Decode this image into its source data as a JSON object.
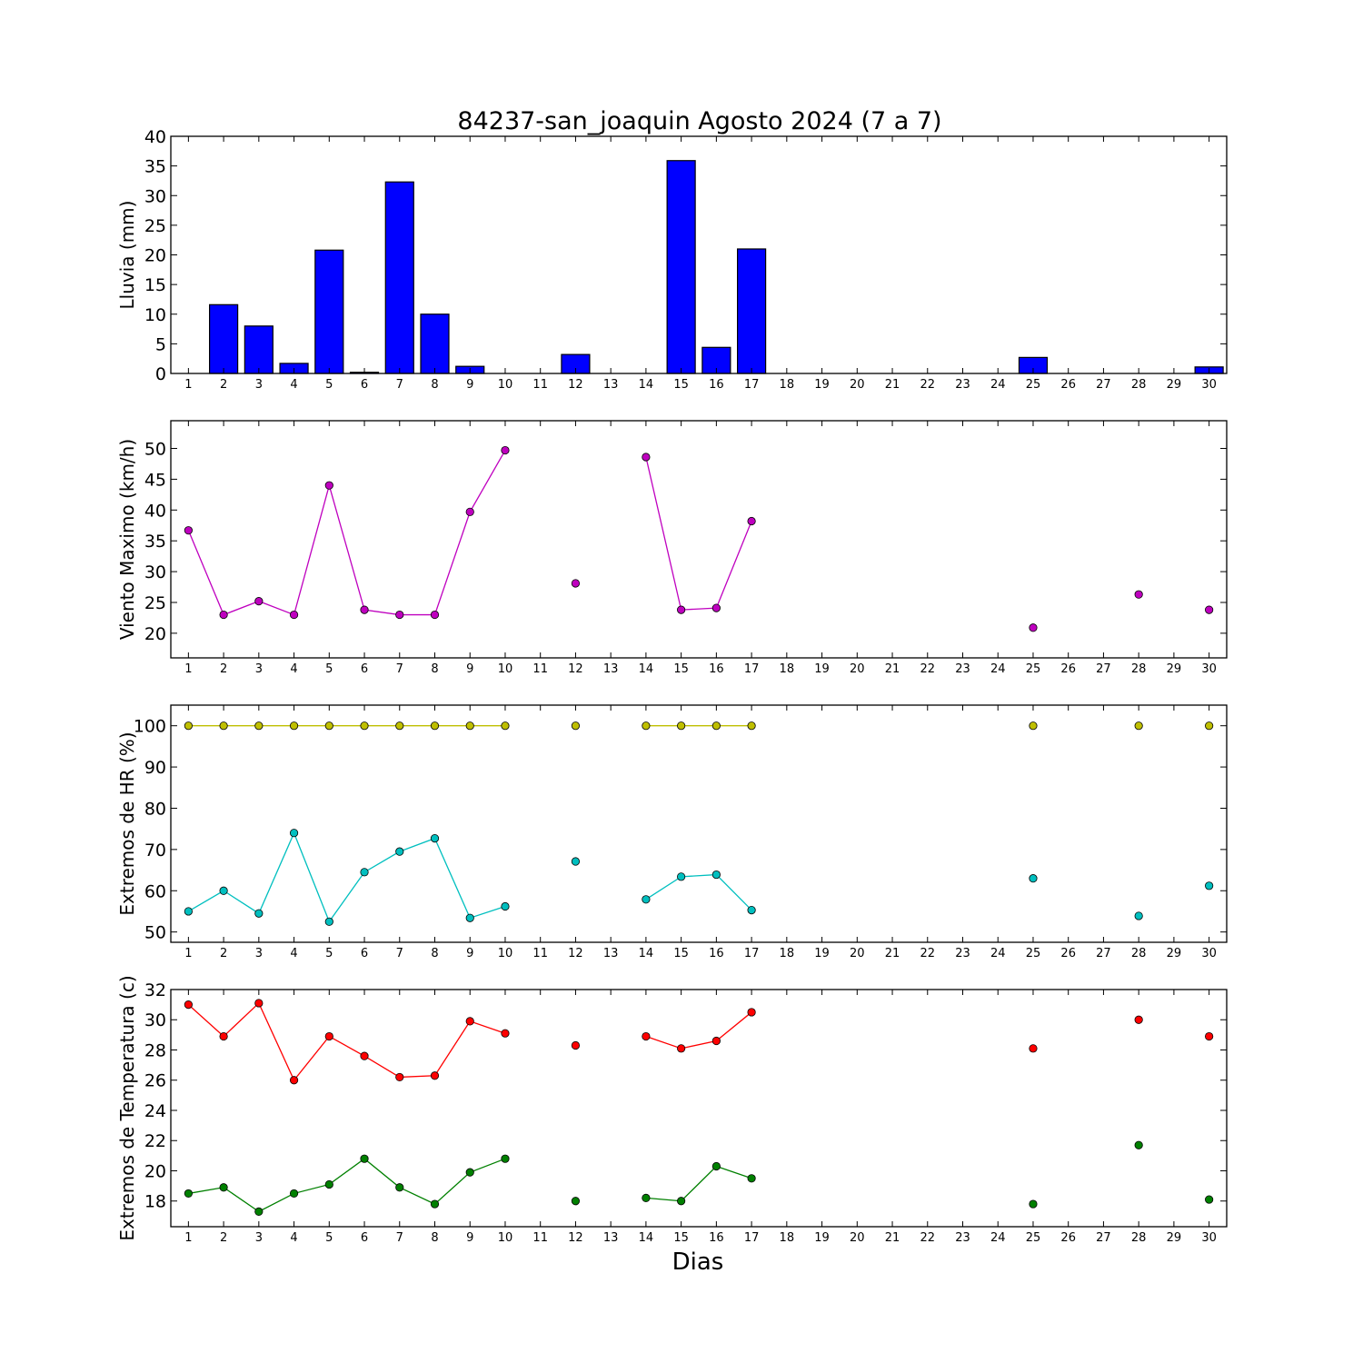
{
  "figure": {
    "title": "84237-san_joaquin Agosto 2024  (7 a 7)",
    "xlabel": "Dias"
  },
  "chart_data": [
    {
      "type": "bar",
      "ylabel": "Lluvia (mm)",
      "ylim": [
        0,
        40
      ],
      "yticks": [
        0,
        5,
        10,
        15,
        20,
        25,
        30,
        35,
        40
      ],
      "xlim": [
        0.5,
        30.5
      ],
      "xticks": [
        1,
        2,
        3,
        4,
        5,
        6,
        7,
        8,
        9,
        10,
        11,
        12,
        13,
        14,
        15,
        16,
        17,
        18,
        19,
        20,
        21,
        22,
        23,
        24,
        25,
        26,
        27,
        28,
        29,
        30
      ],
      "grid": false,
      "series": [
        {
          "color": "#0000ff",
          "x": [
            1,
            2,
            3,
            4,
            5,
            6,
            7,
            8,
            9,
            10,
            11,
            12,
            13,
            14,
            15,
            16,
            17,
            18,
            19,
            20,
            21,
            22,
            23,
            24,
            25,
            26,
            27,
            28,
            29,
            30
          ],
          "y": [
            0,
            11.6,
            8,
            1.7,
            20.8,
            0.2,
            32.3,
            10,
            1.2,
            0,
            0,
            3.2,
            0,
            0,
            35.9,
            4.4,
            21,
            0,
            0,
            0,
            0,
            0,
            0,
            0,
            2.7,
            0,
            0,
            0,
            0,
            1.1
          ]
        }
      ]
    },
    {
      "type": "line",
      "ylabel": "Viento Maximo (km/h)",
      "ylim": [
        16,
        54.5
      ],
      "yticks": [
        20,
        25,
        30,
        35,
        40,
        45,
        50
      ],
      "xlim": [
        0.5,
        30.5
      ],
      "xticks": [
        1,
        2,
        3,
        4,
        5,
        6,
        7,
        8,
        9,
        10,
        11,
        12,
        13,
        14,
        15,
        16,
        17,
        18,
        19,
        20,
        21,
        22,
        23,
        24,
        25,
        26,
        27,
        28,
        29,
        30
      ],
      "grid": false,
      "series": [
        {
          "color": "#bf00bf",
          "x": [
            1,
            2,
            3,
            4,
            5,
            6,
            7,
            8,
            9,
            10,
            11,
            12,
            13,
            14,
            15,
            16,
            17,
            18,
            19,
            20,
            21,
            22,
            23,
            24,
            25,
            26,
            27,
            28,
            29,
            30
          ],
          "y": [
            36.7,
            23,
            25.2,
            23,
            44,
            23.8,
            23,
            23,
            39.7,
            49.7,
            null,
            28.1,
            null,
            48.6,
            23.8,
            24.1,
            38.2,
            null,
            null,
            null,
            null,
            null,
            null,
            null,
            20.9,
            null,
            null,
            26.3,
            null,
            23.8
          ]
        }
      ]
    },
    {
      "type": "line",
      "ylabel": "Extremos de HR (%)",
      "ylim": [
        47.5,
        105
      ],
      "yticks": [
        50,
        60,
        70,
        80,
        90,
        100
      ],
      "xlim": [
        0.5,
        30.5
      ],
      "xticks": [
        1,
        2,
        3,
        4,
        5,
        6,
        7,
        8,
        9,
        10,
        11,
        12,
        13,
        14,
        15,
        16,
        17,
        18,
        19,
        20,
        21,
        22,
        23,
        24,
        25,
        26,
        27,
        28,
        29,
        30
      ],
      "grid": false,
      "series": [
        {
          "color": "#bfbf00",
          "x": [
            1,
            2,
            3,
            4,
            5,
            6,
            7,
            8,
            9,
            10,
            11,
            12,
            13,
            14,
            15,
            16,
            17,
            18,
            19,
            20,
            21,
            22,
            23,
            24,
            25,
            26,
            27,
            28,
            29,
            30
          ],
          "y": [
            100,
            100,
            100,
            100,
            100,
            100,
            100,
            100,
            100,
            100,
            null,
            100,
            null,
            100,
            100,
            100,
            100,
            null,
            null,
            null,
            null,
            null,
            null,
            null,
            100,
            null,
            null,
            100,
            null,
            100
          ]
        },
        {
          "color": "#00bfbf",
          "x": [
            1,
            2,
            3,
            4,
            5,
            6,
            7,
            8,
            9,
            10,
            11,
            12,
            13,
            14,
            15,
            16,
            17,
            18,
            19,
            20,
            21,
            22,
            23,
            24,
            25,
            26,
            27,
            28,
            29,
            30
          ],
          "y": [
            55,
            60,
            54.5,
            74,
            52.5,
            64.5,
            69.5,
            72.7,
            53.4,
            56.2,
            null,
            67.1,
            null,
            57.9,
            63.4,
            63.9,
            55.3,
            null,
            null,
            null,
            null,
            null,
            null,
            null,
            63,
            null,
            null,
            53.9,
            null,
            61.2
          ]
        }
      ]
    },
    {
      "type": "line",
      "ylabel": "Extremos de Temperatura (c)",
      "ylim": [
        16.3,
        32
      ],
      "yticks": [
        18,
        20,
        22,
        24,
        26,
        28,
        30,
        32
      ],
      "xlim": [
        0.5,
        30.5
      ],
      "xticks": [
        1,
        2,
        3,
        4,
        5,
        6,
        7,
        8,
        9,
        10,
        11,
        12,
        13,
        14,
        15,
        16,
        17,
        18,
        19,
        20,
        21,
        22,
        23,
        24,
        25,
        26,
        27,
        28,
        29,
        30
      ],
      "grid": false,
      "series": [
        {
          "color": "#ff0000",
          "x": [
            1,
            2,
            3,
            4,
            5,
            6,
            7,
            8,
            9,
            10,
            11,
            12,
            13,
            14,
            15,
            16,
            17,
            18,
            19,
            20,
            21,
            22,
            23,
            24,
            25,
            26,
            27,
            28,
            29,
            30
          ],
          "y": [
            31,
            28.9,
            31.1,
            26,
            28.9,
            27.6,
            26.2,
            26.3,
            29.9,
            29.1,
            null,
            28.3,
            null,
            28.9,
            28.1,
            28.6,
            30.5,
            null,
            null,
            null,
            null,
            null,
            null,
            null,
            28.1,
            null,
            null,
            30,
            null,
            28.9
          ]
        },
        {
          "color": "#008000",
          "x": [
            1,
            2,
            3,
            4,
            5,
            6,
            7,
            8,
            9,
            10,
            11,
            12,
            13,
            14,
            15,
            16,
            17,
            18,
            19,
            20,
            21,
            22,
            23,
            24,
            25,
            26,
            27,
            28,
            29,
            30
          ],
          "y": [
            18.5,
            18.9,
            17.3,
            18.5,
            19.1,
            20.8,
            18.9,
            17.8,
            19.9,
            20.8,
            null,
            18,
            null,
            18.2,
            18,
            20.3,
            19.5,
            null,
            null,
            null,
            null,
            null,
            null,
            null,
            17.8,
            null,
            null,
            21.7,
            null,
            18.1
          ]
        }
      ]
    }
  ]
}
